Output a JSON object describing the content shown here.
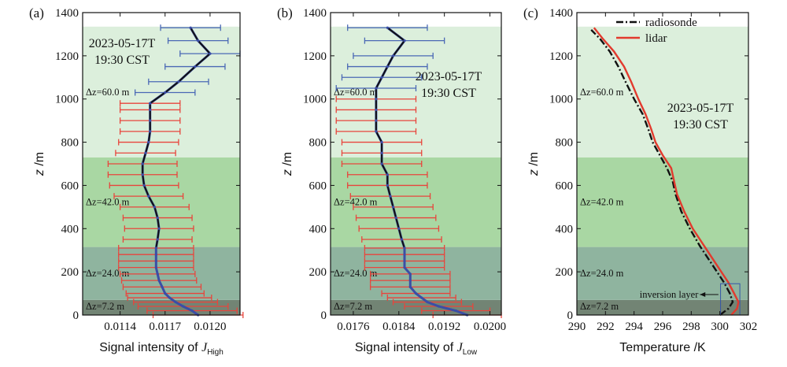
{
  "colors": {
    "band_light": "#dcefdc",
    "band_mid": "#a9d7a3",
    "band_grey": "#8fb49f",
    "band_dark": "#728474",
    "profile": "#111111",
    "profile_low": "#3b4ea6",
    "errorbar": "#e8453c",
    "errorbar_top": "#4a68b5",
    "lidar": "#e23a2e",
    "radiosonde": "#111111"
  },
  "chart_data": [
    {
      "type": "line",
      "panel_label": "(a)",
      "annotation": [
        "2023-05-17T",
        "19:30 CST"
      ],
      "xlabel_main": "Signal intensity of ",
      "xlabel_var": "J",
      "xlabel_sub": "High",
      "ylabel_var": "z",
      "ylabel_unit": " /m",
      "xlim": [
        0.01115,
        0.0122
      ],
      "ylim": [
        0,
        1400
      ],
      "xticks": [
        {
          "v": 0.0114,
          "t": "0.0114"
        },
        {
          "v": 0.0117,
          "t": "0.0117"
        },
        {
          "v": 0.012,
          "t": "0.0120"
        }
      ],
      "yticks": [
        0,
        200,
        400,
        600,
        800,
        1000,
        1200,
        1400
      ],
      "bands": [
        {
          "from": 0,
          "to": 70,
          "label": "Δz=7.2 m",
          "color_key": "band_dark"
        },
        {
          "from": 70,
          "to": 315,
          "label": "Δz=24.0 m",
          "color_key": "band_grey"
        },
        {
          "from": 315,
          "to": 730,
          "label": "Δz=42.0 m",
          "color_key": "band_mid"
        },
        {
          "from": 730,
          "to": 1335,
          "label": "Δz=60.0 m",
          "color_key": "band_light"
        }
      ],
      "series": [
        {
          "z": [
            0,
            20,
            40,
            60,
            80,
            100,
            130,
            160,
            190,
            220,
            250,
            280,
            310,
            350,
            400,
            450,
            500,
            550,
            600,
            650,
            700,
            750,
            800,
            850,
            900,
            950,
            980,
            1030,
            1080,
            1150,
            1210,
            1270,
            1330
          ],
          "x": [
            0.01192,
            0.01188,
            0.01182,
            0.01177,
            0.01173,
            0.0117,
            0.01168,
            0.01166,
            0.01165,
            0.01164,
            0.01164,
            0.01164,
            0.01164,
            0.01165,
            0.01166,
            0.01165,
            0.01163,
            0.01159,
            0.01156,
            0.01155,
            0.01155,
            0.01157,
            0.01159,
            0.0116,
            0.0116,
            0.0116,
            0.0116,
            0.0117,
            0.01179,
            0.0119,
            0.012,
            0.01192,
            0.01187
          ],
          "err": [
            0.0003,
            0.0003,
            0.0003,
            0.00028,
            0.00028,
            0.00026,
            0.00026,
            0.00025,
            0.00025,
            0.00025,
            0.00025,
            0.00025,
            0.00025,
            0.00023,
            0.00023,
            0.00023,
            0.00023,
            0.00023,
            0.00023,
            0.00023,
            0.00023,
            0.0002,
            0.0002,
            0.0002,
            0.0002,
            0.0002,
            0.0002,
            0.0002,
            0.0002,
            0.0002,
            0.0002,
            0.0002,
            0.0002
          ]
        }
      ]
    },
    {
      "type": "line",
      "panel_label": "(b)",
      "annotation": [
        "2023-05-17T",
        "19:30 CST"
      ],
      "xlabel_main": "Signal intensity of ",
      "xlabel_var": "J",
      "xlabel_sub": "Low",
      "ylabel_var": "z",
      "ylabel_unit": " /m",
      "xlim": [
        0.0172,
        0.0202
      ],
      "ylim": [
        0,
        1400
      ],
      "xticks": [
        {
          "v": 0.0176,
          "t": "0.0176"
        },
        {
          "v": 0.0184,
          "t": "0.0184"
        },
        {
          "v": 0.0192,
          "t": "0.0192"
        },
        {
          "v": 0.02,
          "t": "0.0200"
        }
      ],
      "yticks": [
        0,
        200,
        400,
        600,
        800,
        1000,
        1200,
        1400
      ],
      "bands": [
        {
          "from": 0,
          "to": 70,
          "label": "Δz=7.2 m",
          "color_key": "band_dark"
        },
        {
          "from": 70,
          "to": 315,
          "label": "Δz=24.0 m",
          "color_key": "band_grey"
        },
        {
          "from": 315,
          "to": 730,
          "label": "Δz=42.0 m",
          "color_key": "band_mid"
        },
        {
          "from": 730,
          "to": 1335,
          "label": "Δz=60.0 m",
          "color_key": "band_light"
        }
      ],
      "series": [
        {
          "z": [
            0,
            20,
            40,
            60,
            80,
            100,
            130,
            160,
            190,
            220,
            250,
            280,
            310,
            350,
            400,
            450,
            500,
            550,
            600,
            650,
            700,
            750,
            800,
            850,
            900,
            950,
            1000,
            1050,
            1100,
            1150,
            1200,
            1270,
            1330
          ],
          "x": [
            0.0196,
            0.0194,
            0.0191,
            0.0189,
            0.0188,
            0.0187,
            0.0186,
            0.0186,
            0.0186,
            0.0185,
            0.0185,
            0.0185,
            0.0185,
            0.01845,
            0.0184,
            0.01835,
            0.0183,
            0.01825,
            0.0182,
            0.0182,
            0.0181,
            0.0181,
            0.0181,
            0.018,
            0.018,
            0.018,
            0.018,
            0.018,
            0.0181,
            0.0182,
            0.0183,
            0.0185,
            0.0182
          ],
          "err": [
            0.0006,
            0.0006,
            0.0006,
            0.0006,
            0.0006,
            0.0006,
            0.0007,
            0.0007,
            0.0007,
            0.0007,
            0.0007,
            0.0007,
            0.0007,
            0.0007,
            0.0007,
            0.0007,
            0.0007,
            0.0007,
            0.0007,
            0.0007,
            0.0007,
            0.0007,
            0.0007,
            0.0007,
            0.0007,
            0.0007,
            0.0007,
            0.0007,
            0.0007,
            0.0007,
            0.0007,
            0.0007,
            0.0007
          ]
        }
      ]
    },
    {
      "type": "line",
      "panel_label": "(c)",
      "annotation": [
        "2023-05-17T",
        "19:30 CST"
      ],
      "xlabel": "Temperature /K",
      "ylabel_var": "z",
      "ylabel_unit": " /m",
      "xlim": [
        290,
        302
      ],
      "ylim": [
        0,
        1400
      ],
      "xticks": [
        {
          "v": 290,
          "t": "290"
        },
        {
          "v": 292,
          "t": "292"
        },
        {
          "v": 294,
          "t": "294"
        },
        {
          "v": 296,
          "t": "296"
        },
        {
          "v": 298,
          "t": "298"
        },
        {
          "v": 300,
          "t": "300"
        },
        {
          "v": 302,
          "t": "302"
        }
      ],
      "yticks": [
        0,
        200,
        400,
        600,
        800,
        1000,
        1200,
        1400
      ],
      "bands": [
        {
          "from": 0,
          "to": 70,
          "label": "Δz=7.2 m",
          "color_key": "band_dark"
        },
        {
          "from": 70,
          "to": 315,
          "label": "Δz=24.0 m",
          "color_key": "band_grey"
        },
        {
          "from": 315,
          "to": 730,
          "label": "Δz=42.0 m",
          "color_key": "band_mid"
        },
        {
          "from": 730,
          "to": 1335,
          "label": "Δz=60.0 m",
          "color_key": "band_light"
        }
      ],
      "legend": [
        "radiosonde",
        "lidar"
      ],
      "inversion_label": "inversion layer",
      "series": [
        {
          "name": "radiosonde",
          "z": [
            0,
            30,
            60,
            100,
            150,
            200,
            260,
            320,
            400,
            480,
            560,
            620,
            680,
            740,
            800,
            860,
            930,
            1000,
            1080,
            1150,
            1220,
            1280,
            1320
          ],
          "T": [
            300.0,
            300.6,
            300.9,
            300.7,
            300.3,
            299.8,
            299.2,
            298.6,
            297.9,
            297.3,
            296.9,
            296.7,
            296.3,
            295.8,
            295.3,
            295.0,
            294.6,
            294.0,
            293.4,
            292.9,
            292.3,
            291.6,
            291.0
          ]
        },
        {
          "name": "lidar",
          "z": [
            0,
            30,
            60,
            100,
            150,
            200,
            260,
            320,
            400,
            480,
            560,
            620,
            680,
            740,
            800,
            860,
            930,
            1000,
            1080,
            1150,
            1220,
            1280,
            1330
          ],
          "T": [
            300.8,
            301.2,
            301.3,
            301.0,
            300.6,
            300.1,
            299.5,
            298.9,
            298.1,
            297.5,
            297.0,
            296.8,
            296.6,
            296.0,
            295.5,
            295.2,
            294.8,
            294.3,
            293.8,
            293.3,
            292.6,
            291.8,
            291.2
          ]
        }
      ]
    }
  ]
}
